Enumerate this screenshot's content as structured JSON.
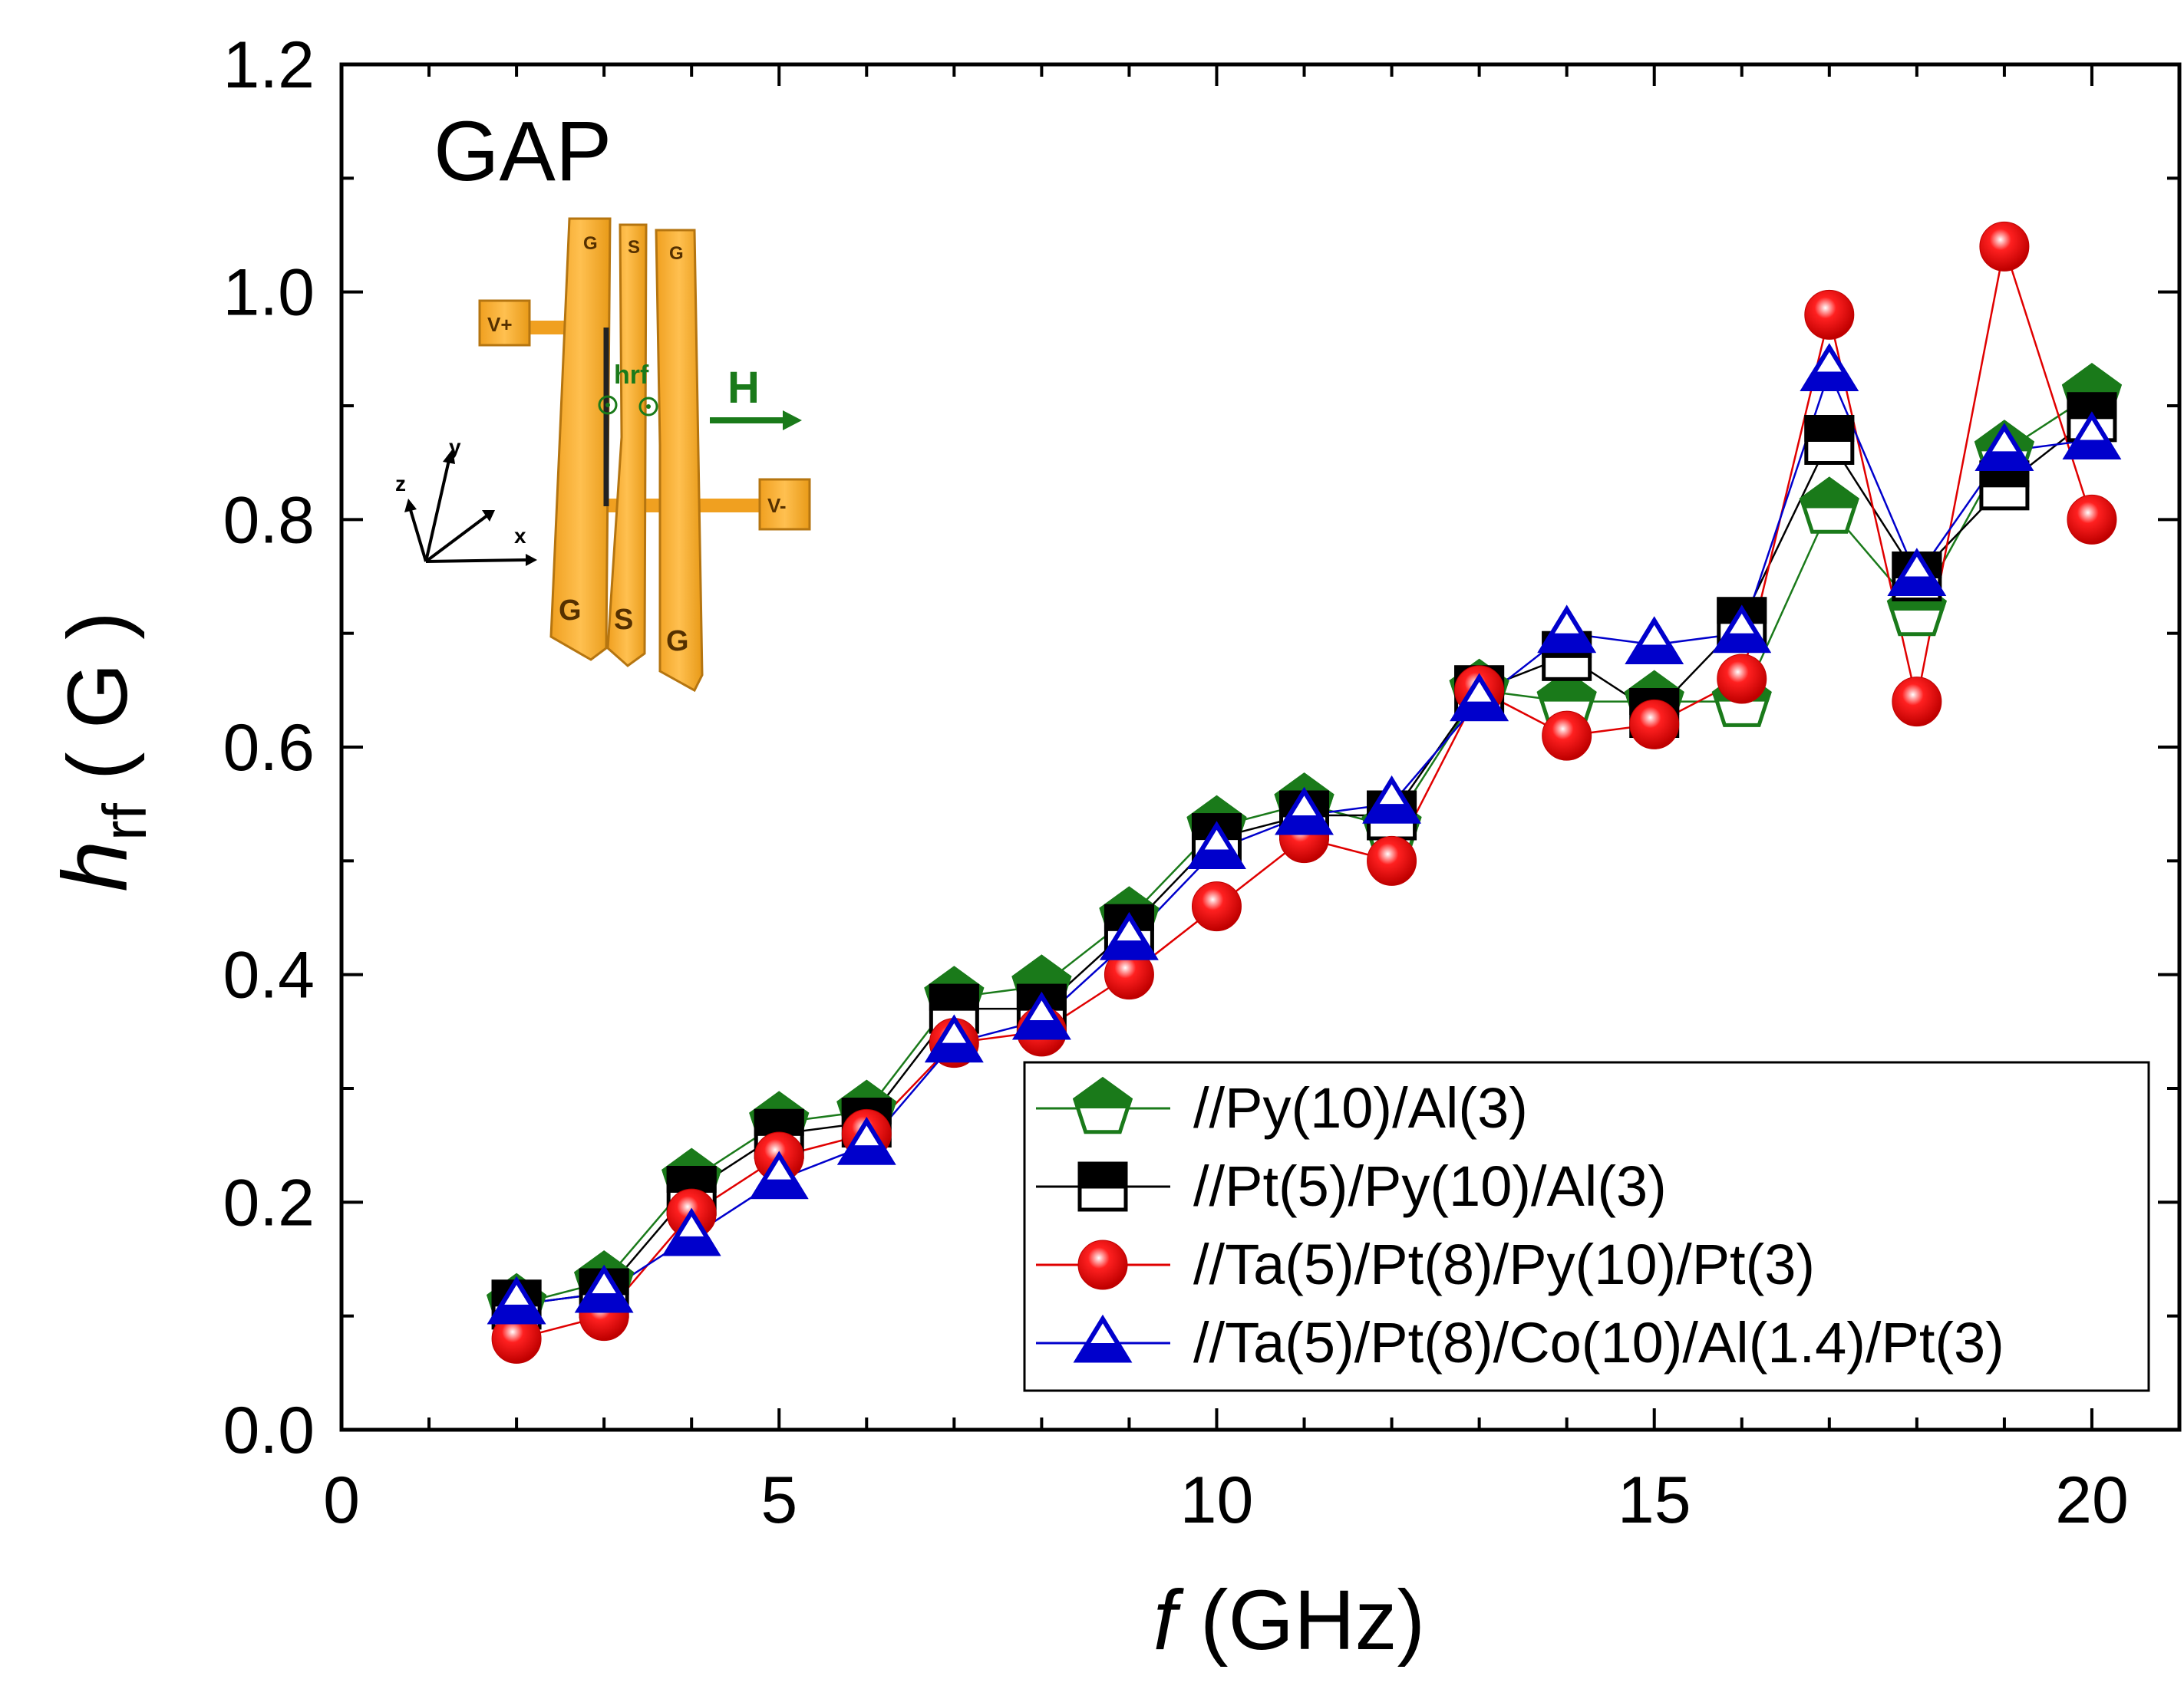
{
  "chart_data": {
    "type": "scatter",
    "title": "",
    "xlabel_italic": "f",
    "xlabel_rest": " (GHz)",
    "ylabel_main": "h",
    "ylabel_sub": "rf",
    "ylabel_unit": "( G )",
    "xlim": [
      0,
      21
    ],
    "ylim": [
      0.0,
      1.2
    ],
    "x_ticks": [
      "0",
      "5",
      "10",
      "15",
      "20"
    ],
    "x_tick_values": [
      0,
      5,
      10,
      15,
      20
    ],
    "y_ticks": [
      "0.0",
      "0.2",
      "0.4",
      "0.6",
      "0.8",
      "1.0",
      "1.2"
    ],
    "y_tick_values": [
      0.0,
      0.2,
      0.4,
      0.6,
      0.8,
      1.0,
      1.2
    ],
    "annotation": "GAP",
    "legend_position": "bottom-right",
    "x": [
      2,
      3,
      4,
      5,
      6,
      7,
      8,
      9,
      10,
      11,
      12,
      13,
      14,
      15,
      16,
      17,
      18,
      19,
      20
    ],
    "series": [
      {
        "name": "//Py(10)/Al(3)",
        "marker": "pentagon",
        "color": "#1a7a1a",
        "values": [
          0.11,
          0.13,
          0.22,
          0.27,
          0.28,
          0.38,
          0.39,
          0.45,
          0.53,
          0.55,
          0.53,
          0.65,
          0.64,
          0.64,
          0.64,
          0.81,
          0.72,
          0.86,
          0.91
        ]
      },
      {
        "name": "//Pt(5)/Py(10)/Al(3)",
        "marker": "square",
        "color": "#000000",
        "values": [
          0.11,
          0.12,
          0.21,
          0.26,
          0.27,
          0.37,
          0.37,
          0.44,
          0.52,
          0.54,
          0.54,
          0.65,
          0.68,
          0.63,
          0.71,
          0.87,
          0.75,
          0.83,
          0.89
        ]
      },
      {
        "name": "//Ta(5)/Pt(8)/Py(10)/Pt(3)",
        "marker": "sphere",
        "color": "#e00000",
        "values": [
          0.08,
          0.1,
          0.19,
          0.24,
          0.26,
          0.34,
          0.35,
          0.4,
          0.46,
          0.52,
          0.5,
          0.65,
          0.61,
          0.62,
          0.66,
          0.98,
          0.64,
          1.04,
          0.8
        ]
      },
      {
        "name": "//Ta(5)/Pt(8)/Co(10)/Al(1.4)/Pt(3)",
        "marker": "triangle",
        "color": "#0000cc",
        "values": [
          0.11,
          0.12,
          0.17,
          0.22,
          0.25,
          0.34,
          0.36,
          0.43,
          0.51,
          0.54,
          0.55,
          0.64,
          0.7,
          0.69,
          0.7,
          0.93,
          0.75,
          0.86,
          0.87
        ]
      }
    ],
    "inset": {
      "labels": [
        "G",
        "S",
        "G",
        "G",
        "S",
        "G",
        "V+",
        "V-",
        "hrf",
        "H",
        "x",
        "y",
        "z"
      ]
    }
  }
}
